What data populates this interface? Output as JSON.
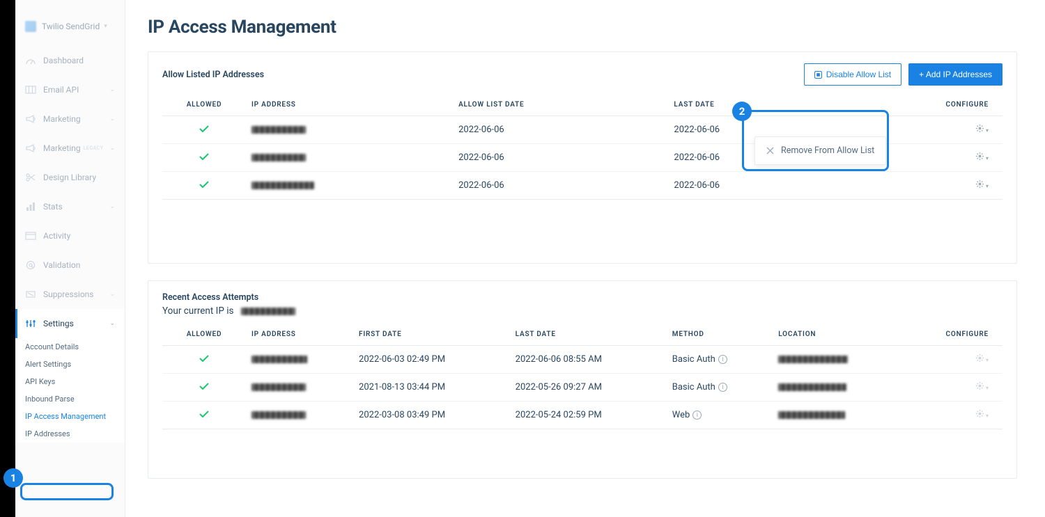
{
  "brand": {
    "name": "Twilio SendGrid"
  },
  "sidebar": {
    "items": [
      {
        "label": "Dashboard",
        "icon": "gauge"
      },
      {
        "label": "Email API",
        "icon": "columns",
        "caret": true
      },
      {
        "label": "Marketing",
        "icon": "megaphone",
        "caret": true
      },
      {
        "label": "Marketing",
        "icon": "megaphone",
        "legacy": "LEGACY",
        "caret": true
      },
      {
        "label": "Design Library",
        "icon": "scissors"
      },
      {
        "label": "Stats",
        "icon": "bar",
        "caret": true
      },
      {
        "label": "Activity",
        "icon": "window"
      },
      {
        "label": "Validation",
        "icon": "at"
      },
      {
        "label": "Suppressions",
        "icon": "cancel",
        "caret": true
      },
      {
        "label": "Settings",
        "icon": "sliders",
        "caret": true,
        "expanded": true
      }
    ],
    "sub_items": [
      "Account Details",
      "Alert Settings",
      "API Keys",
      "Inbound Parse",
      "IP Access Management",
      "IP Addresses"
    ],
    "sub_active_index": 4
  },
  "page": {
    "title": "IP Access Management"
  },
  "card1": {
    "title": "Allow Listed IP Addresses",
    "disable_btn": "Disable Allow List",
    "add_btn": "+ Add IP Addresses",
    "columns": [
      "ALLOWED",
      "IP ADDRESS",
      "ALLOW LIST DATE",
      "LAST DATE",
      "CONFIGURE"
    ],
    "rows": [
      {
        "allowed": true,
        "ip_w": 78,
        "allow_date": "2022-06-06",
        "last_date": "2022-06-06"
      },
      {
        "allowed": true,
        "ip_w": 78,
        "allow_date": "2022-06-06",
        "last_date": "2022-06-06"
      },
      {
        "allowed": true,
        "ip_w": 90,
        "allow_date": "2022-06-06",
        "last_date": "2022-06-06"
      }
    ],
    "menu_label": "Remove From Allow List"
  },
  "card2": {
    "title": "Recent Access Attempts",
    "current_ip_label": "Your current IP is",
    "current_ip_w": 78,
    "columns": [
      "ALLOWED",
      "IP ADDRESS",
      "FIRST DATE",
      "LAST DATE",
      "METHOD",
      "LOCATION",
      "CONFIGURE"
    ],
    "rows": [
      {
        "allowed": true,
        "ip_w": 80,
        "first": "2022-06-03 02:49 PM",
        "last": "2022-06-06 08:55 AM",
        "method": "Basic Auth",
        "loc_w": 100
      },
      {
        "allowed": true,
        "ip_w": 78,
        "first": "2021-08-13 03:44 PM",
        "last": "2022-05-26 09:27 AM",
        "method": "Basic Auth",
        "loc_w": 98
      },
      {
        "allowed": true,
        "ip_w": 78,
        "first": "2022-03-08 03:49 PM",
        "last": "2022-05-24 02:59 PM",
        "method": "Web",
        "loc_w": 96
      }
    ]
  },
  "callouts": {
    "one": "1",
    "two": "2"
  },
  "colors": {
    "brand": "#1a82e2",
    "text": "#294661",
    "muted": "#9aa6b1",
    "border": "#e7ecf1",
    "check": "#18c96e"
  }
}
